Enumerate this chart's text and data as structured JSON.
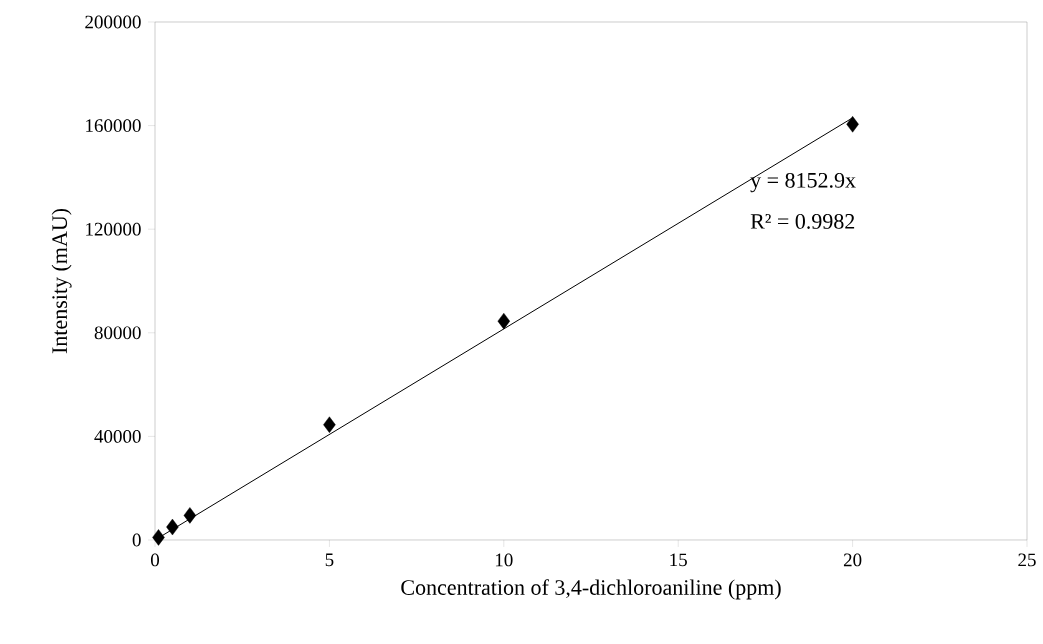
{
  "chart_data": {
    "type": "scatter",
    "xlabel": "Concentration of 3,4-dichloroaniline (ppm)",
    "ylabel": "Intensity (mAU)",
    "x": [
      0.1,
      0.5,
      1,
      5,
      10,
      20
    ],
    "series": [
      {
        "color": "#000000",
        "marker": "diamond",
        "values": [
          1000,
          5000,
          9500,
          44500,
          84500,
          160500
        ]
      },
      {
        "type": "line",
        "color": "#000000",
        "marker": "none",
        "x": [
          0,
          20
        ],
        "values": [
          0,
          163000
        ]
      }
    ],
    "annotations": [
      "y = 8152.9x",
      "R² = 0.9982"
    ],
    "xlim": [
      0,
      25
    ],
    "xticks": [
      0,
      5,
      10,
      15,
      20,
      25
    ],
    "ylim": [
      0,
      200000
    ],
    "yticks": [
      0,
      40000,
      80000,
      120000,
      160000,
      200000
    ],
    "grid": false
  }
}
